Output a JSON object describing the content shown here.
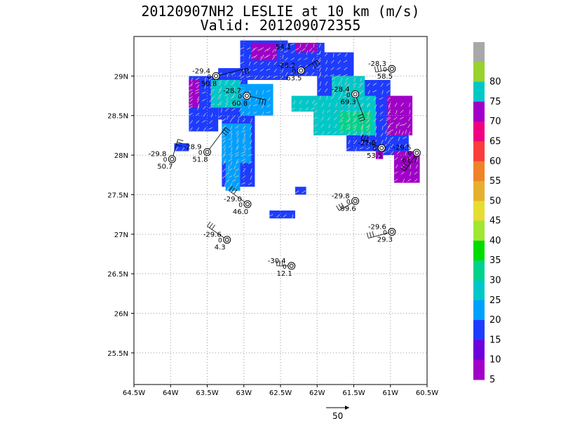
{
  "title": "20120907NH2 LESLIE at 10 km (m/s)",
  "valid": "Valid: 201209072355",
  "map": {
    "lon_range": [
      -64.5,
      -60.5
    ],
    "lat_range": [
      25.1,
      29.5
    ],
    "lon_ticks": [
      {
        "value": -64.5,
        "label": "64.5W"
      },
      {
        "value": -64.0,
        "label": "64W"
      },
      {
        "value": -63.5,
        "label": "63.5W"
      },
      {
        "value": -63.0,
        "label": "63W"
      },
      {
        "value": -62.5,
        "label": "62.5W"
      },
      {
        "value": -62.0,
        "label": "62W"
      },
      {
        "value": -61.5,
        "label": "61.5W"
      },
      {
        "value": -61.0,
        "label": "61W"
      },
      {
        "value": -60.5,
        "label": "60.5W"
      }
    ],
    "lat_ticks": [
      {
        "value": 25.5,
        "label": "25.5N"
      },
      {
        "value": 26.0,
        "label": "26N"
      },
      {
        "value": 26.5,
        "label": "26.5N"
      },
      {
        "value": 27.0,
        "label": "27N"
      },
      {
        "value": 27.5,
        "label": "27.5N"
      },
      {
        "value": 28.0,
        "label": "28N"
      },
      {
        "value": 28.5,
        "label": "28.5N"
      },
      {
        "value": 29.0,
        "label": "29N"
      }
    ],
    "grid": true
  },
  "colorbar": {
    "levels": [
      {
        "label": "",
        "color": "#a8a8a8"
      },
      {
        "label": "80",
        "color": "#96d22d"
      },
      {
        "label": "75",
        "color": "#00c8c8"
      },
      {
        "label": "70",
        "color": "#a000c8"
      },
      {
        "label": "65",
        "color": "#f00082"
      },
      {
        "label": "60",
        "color": "#fa3c3c"
      },
      {
        "label": "55",
        "color": "#f08228"
      },
      {
        "label": "50",
        "color": "#e6af2d"
      },
      {
        "label": "45",
        "color": "#e6dc32"
      },
      {
        "label": "40",
        "color": "#a0e632"
      },
      {
        "label": "35",
        "color": "#00dc00"
      },
      {
        "label": "30",
        "color": "#00d28c"
      },
      {
        "label": "25",
        "color": "#00c8c8"
      },
      {
        "label": "20",
        "color": "#00a0ff"
      },
      {
        "label": "15",
        "color": "#1e3cff"
      },
      {
        "label": "10",
        "color": "#6e00dc"
      },
      {
        "label": "5",
        "color": "#a000c8"
      }
    ]
  },
  "wind_regions": [
    {
      "color": "#1e3cff",
      "lon": [
        -63.75,
        -63.35
      ],
      "lat": [
        28.3,
        29.0
      ]
    },
    {
      "color": "#1e3cff",
      "lon": [
        -63.35,
        -62.95
      ],
      "lat": [
        28.45,
        29.1
      ]
    },
    {
      "color": "#1e3cff",
      "lon": [
        -63.3,
        -62.85
      ],
      "lat": [
        27.6,
        28.5
      ]
    },
    {
      "color": "#1e3cff",
      "lon": [
        -63.05,
        -62.4
      ],
      "lat": [
        28.95,
        29.45
      ]
    },
    {
      "color": "#1e3cff",
      "lon": [
        -62.45,
        -61.9
      ],
      "lat": [
        29.0,
        29.42
      ]
    },
    {
      "color": "#1e3cff",
      "lon": [
        -62.0,
        -61.5
      ],
      "lat": [
        28.7,
        29.3
      ]
    },
    {
      "color": "#1e3cff",
      "lon": [
        -61.6,
        -61.0
      ],
      "lat": [
        28.05,
        28.95
      ]
    },
    {
      "color": "#1e3cff",
      "lon": [
        -63.95,
        -63.75
      ],
      "lat": [
        28.05,
        28.15
      ]
    },
    {
      "color": "#1e3cff",
      "lon": [
        -61.1,
        -60.75
      ],
      "lat": [
        28.0,
        28.5
      ]
    },
    {
      "color": "#1e3cff",
      "lon": [
        -62.3,
        -62.15
      ],
      "lat": [
        27.5,
        27.6
      ]
    },
    {
      "color": "#1e3cff",
      "lon": [
        -62.65,
        -62.3
      ],
      "lat": [
        27.2,
        27.3
      ]
    },
    {
      "color": "#00a0ff",
      "lon": [
        -63.3,
        -62.9
      ],
      "lat": [
        27.9,
        28.4
      ]
    },
    {
      "color": "#00a0ff",
      "lon": [
        -63.05,
        -62.6
      ],
      "lat": [
        28.5,
        28.9
      ]
    },
    {
      "color": "#00a0ff",
      "lon": [
        -63.25,
        -63.05
      ],
      "lat": [
        27.55,
        27.9
      ]
    },
    {
      "color": "#00c8c8",
      "lon": [
        -63.45,
        -63.05
      ],
      "lat": [
        28.6,
        28.95
      ]
    },
    {
      "color": "#00c8c8",
      "lon": [
        -62.05,
        -61.2
      ],
      "lat": [
        28.25,
        28.75
      ]
    },
    {
      "color": "#00c8c8",
      "lon": [
        -61.8,
        -61.35
      ],
      "lat": [
        28.75,
        29.0
      ]
    },
    {
      "color": "#00c8c8",
      "lon": [
        -62.35,
        -61.95
      ],
      "lat": [
        28.55,
        28.75
      ]
    },
    {
      "color": "#00d28c",
      "lon": [
        -61.7,
        -61.25
      ],
      "lat": [
        28.3,
        28.55
      ]
    },
    {
      "color": "#a000c8",
      "lon": [
        -63.75,
        -63.6
      ],
      "lat": [
        28.6,
        28.95
      ]
    },
    {
      "color": "#a000c8",
      "lon": [
        -62.9,
        -62.55
      ],
      "lat": [
        29.2,
        29.42
      ]
    },
    {
      "color": "#a000c8",
      "lon": [
        -62.3,
        -62.0
      ],
      "lat": [
        29.3,
        29.42
      ]
    },
    {
      "color": "#a000c8",
      "lon": [
        -61.05,
        -60.7
      ],
      "lat": [
        28.25,
        28.75
      ]
    },
    {
      "color": "#a000c8",
      "lon": [
        -60.95,
        -60.6
      ],
      "lat": [
        27.65,
        28.05
      ]
    },
    {
      "color": "#a000c8",
      "lon": [
        -61.2,
        -61.1
      ],
      "lat": [
        27.95,
        28.05
      ]
    }
  ],
  "stations": [
    {
      "temp": "-29.4",
      "value": "50.8",
      "lon": -63.38,
      "lat": 29.0,
      "barb": [
        -62.95,
        29.1
      ]
    },
    {
      "temp": "-28.7",
      "value": "60.8",
      "lon": -62.96,
      "lat": 28.75,
      "barb": [
        -62.7,
        28.7
      ]
    },
    {
      "temp": "-28.2",
      "value": "63.5",
      "lon": -62.22,
      "lat": 29.07,
      "barb": [
        -62.0,
        29.2
      ]
    },
    {
      "temp": "-28.3",
      "value": "58.5",
      "lon": -60.98,
      "lat": 29.09,
      "barb": [
        -61.2,
        29.05
      ]
    },
    {
      "temp": "-28.4",
      "value": "69.3",
      "lon": -61.48,
      "lat": 28.77,
      "barb": [
        -61.35,
        28.45
      ]
    },
    {
      "temp": "-27.9",
      "value": "53.5",
      "lon": -61.12,
      "lat": 28.09,
      "barb": [
        -61.4,
        28.2
      ]
    },
    {
      "temp": "-29.5",
      "value": "61.7",
      "lon": -60.64,
      "lat": 28.03,
      "barb": [
        -60.8,
        27.8
      ]
    },
    {
      "temp": "-28.9",
      "value": "51.8",
      "lon": -63.5,
      "lat": 28.04,
      "barb": [
        -63.25,
        28.35
      ]
    },
    {
      "temp": "-29.8",
      "value": "50.7",
      "lon": -63.98,
      "lat": 27.95,
      "barb": [
        -63.9,
        28.2
      ]
    },
    {
      "temp": "-29.0",
      "value": "46.0",
      "lon": -62.95,
      "lat": 27.38,
      "barb": [
        -63.2,
        27.55
      ]
    },
    {
      "temp": "-29.8",
      "value": "59.6",
      "lon": -61.48,
      "lat": 27.42,
      "barb": [
        -61.7,
        27.3
      ]
    },
    {
      "temp": "-29.6",
      "value": "29.3",
      "lon": -60.98,
      "lat": 27.03,
      "barb": [
        -61.3,
        26.95
      ]
    },
    {
      "temp": "-29.6",
      "value": "4.3",
      "lon": -63.23,
      "lat": 26.93,
      "barb": [
        -63.5,
        27.1
      ]
    },
    {
      "temp": "-30.4",
      "value": "12.1",
      "lon": -62.35,
      "lat": 26.6,
      "barb": [
        -62.55,
        26.6
      ]
    }
  ],
  "station_marker": "0",
  "top_value": "54.1",
  "scale_vector": {
    "label": "50"
  }
}
